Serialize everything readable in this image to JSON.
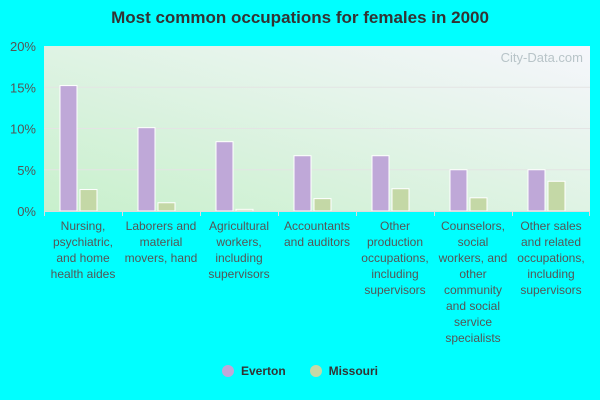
{
  "chart_data": {
    "type": "bar",
    "title": "Most common occupations for females in 2000",
    "categories": [
      "Nursing, psychiatric, and home health aides",
      "Laborers and material movers, hand",
      "Agricultural workers, including supervisors",
      "Accountants and auditors",
      "Other production occupations, including supervisors",
      "Counselors, social workers, and other community and social service specialists",
      "Other sales and related occupations, including supervisors"
    ],
    "series": [
      {
        "name": "Everton",
        "color": "#bfa8d8",
        "values": [
          15.2,
          10.1,
          8.4,
          6.7,
          6.7,
          5.0,
          5.0
        ]
      },
      {
        "name": "Missouri",
        "color": "#c4d8a6",
        "values": [
          2.6,
          1.0,
          0.2,
          1.5,
          2.7,
          1.6,
          3.6
        ]
      }
    ],
    "ylim": [
      0,
      20
    ],
    "yticks": [
      "0%",
      "5%",
      "10%",
      "15%",
      "20%"
    ],
    "grid": true,
    "legend": "bottom",
    "watermark": "City-Data.com"
  }
}
